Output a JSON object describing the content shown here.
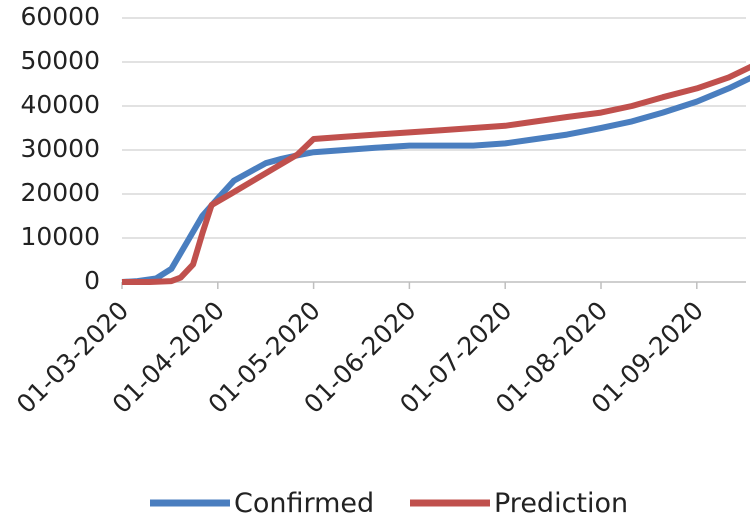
{
  "chart_data": {
    "type": "line",
    "title": "",
    "xlabel": "",
    "ylabel": "",
    "ylim": [
      0,
      60000
    ],
    "yticks": [
      0,
      10000,
      20000,
      30000,
      40000,
      50000,
      60000
    ],
    "xticks": [
      "01-03-2020",
      "01-04-2020",
      "01-05-2020",
      "01-06-2020",
      "01-07-2020",
      "01-08-2020",
      "01-09-2020"
    ],
    "grid": true,
    "legend": "bottom",
    "series": [
      {
        "name": "Confirmed",
        "color": "#4a7ebf",
        "points": [
          [
            "2020-03-01",
            0
          ],
          [
            "2020-03-06",
            200
          ],
          [
            "2020-03-12",
            800
          ],
          [
            "2020-03-17",
            3000
          ],
          [
            "2020-03-22",
            9000
          ],
          [
            "2020-03-27",
            15000
          ],
          [
            "2020-04-01",
            19000
          ],
          [
            "2020-04-06",
            23000
          ],
          [
            "2020-04-11",
            25000
          ],
          [
            "2020-04-16",
            27000
          ],
          [
            "2020-04-21",
            28000
          ],
          [
            "2020-04-26",
            28800
          ],
          [
            "2020-05-01",
            29500
          ],
          [
            "2020-05-11",
            30000
          ],
          [
            "2020-05-21",
            30500
          ],
          [
            "2020-06-01",
            31000
          ],
          [
            "2020-06-11",
            31000
          ],
          [
            "2020-06-21",
            31000
          ],
          [
            "2020-07-01",
            31500
          ],
          [
            "2020-07-11",
            32500
          ],
          [
            "2020-07-21",
            33500
          ],
          [
            "2020-08-01",
            35000
          ],
          [
            "2020-08-11",
            36500
          ],
          [
            "2020-08-21",
            38500
          ],
          [
            "2020-09-01",
            41000
          ],
          [
            "2020-09-11",
            44000
          ],
          [
            "2020-09-21",
            47500
          ],
          [
            "2020-09-25",
            48000
          ]
        ]
      },
      {
        "name": "Prediction",
        "color": "#c0504d",
        "points": [
          [
            "2020-03-01",
            0
          ],
          [
            "2020-03-10",
            0
          ],
          [
            "2020-03-17",
            200
          ],
          [
            "2020-03-20",
            1000
          ],
          [
            "2020-03-24",
            4000
          ],
          [
            "2020-03-27",
            11000
          ],
          [
            "2020-03-30",
            17500
          ],
          [
            "2020-04-05",
            20000
          ],
          [
            "2020-04-12",
            23000
          ],
          [
            "2020-04-19",
            26000
          ],
          [
            "2020-04-26",
            29000
          ],
          [
            "2020-05-01",
            32500
          ],
          [
            "2020-05-11",
            33000
          ],
          [
            "2020-05-21",
            33500
          ],
          [
            "2020-06-01",
            34000
          ],
          [
            "2020-06-11",
            34500
          ],
          [
            "2020-06-21",
            35000
          ],
          [
            "2020-07-01",
            35500
          ],
          [
            "2020-07-11",
            36500
          ],
          [
            "2020-07-21",
            37500
          ],
          [
            "2020-08-01",
            38500
          ],
          [
            "2020-08-11",
            40000
          ],
          [
            "2020-08-21",
            42000
          ],
          [
            "2020-09-01",
            44000
          ],
          [
            "2020-09-11",
            46500
          ],
          [
            "2020-09-21",
            50000
          ],
          [
            "2020-09-25",
            51000
          ]
        ]
      }
    ]
  }
}
